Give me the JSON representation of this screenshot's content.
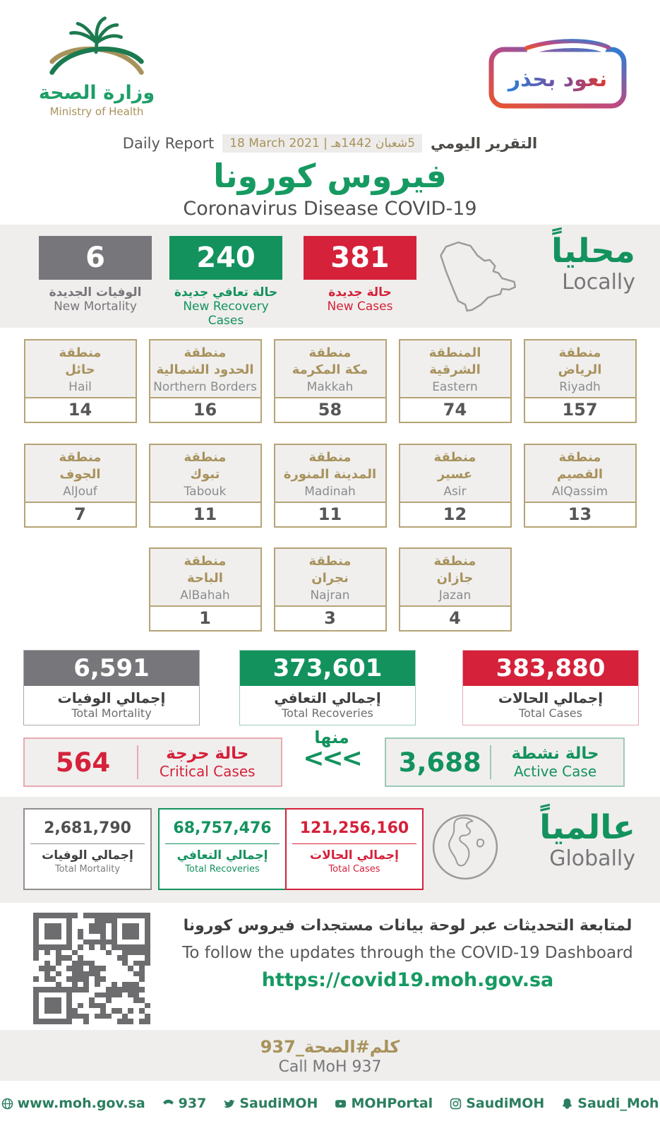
{
  "colors": {
    "green": "#13925e",
    "red": "#d5213a",
    "grey": "#77767a",
    "gold": "#a8925c",
    "band": "#efeeec"
  },
  "header": {
    "ministry_ar": "وزارة الصحة",
    "ministry_en": "Ministry of Health",
    "badge": "نعود بحذر",
    "report_en": "Daily Report",
    "report_ar": "التقرير اليومي",
    "date_hijri": "5شعبان 1442هـ",
    "date_sep": "|",
    "date_greg": "18 March 2021",
    "title_ar": "فيروس كورونا",
    "title_en": "Coronavirus Disease COVID-19"
  },
  "locally": {
    "label_ar": "محلياً",
    "label_en": "Locally",
    "new_mortality": {
      "value": "6",
      "ar": "الوفيات الجديدة",
      "en": "New Mortality"
    },
    "new_recovery": {
      "value": "240",
      "ar": "حالة تعافي جديدة",
      "en": "New Recovery Cases"
    },
    "new_cases": {
      "value": "381",
      "ar": "حالة جديدة",
      "en": "New Cases"
    }
  },
  "regions": [
    {
      "ar_top": "منطقة",
      "ar_name": "حائل",
      "en": "Hail",
      "value": "14"
    },
    {
      "ar_top": "منطقة",
      "ar_name": "الحدود الشمالية",
      "en": "Northern Borders",
      "value": "16"
    },
    {
      "ar_top": "منطقة",
      "ar_name": "مكة المكرمة",
      "en": "Makkah",
      "value": "58"
    },
    {
      "ar_top": "المنطقة",
      "ar_name": "الشرقية",
      "en": "Eastern",
      "value": "74"
    },
    {
      "ar_top": "منطقة",
      "ar_name": "الرياض",
      "en": "Riyadh",
      "value": "157"
    },
    {
      "ar_top": "منطقة",
      "ar_name": "الجوف",
      "en": "AlJouf",
      "value": "7"
    },
    {
      "ar_top": "منطقة",
      "ar_name": "تبوك",
      "en": "Tabouk",
      "value": "11"
    },
    {
      "ar_top": "منطقة",
      "ar_name": "المدينة المنورة",
      "en": "Madinah",
      "value": "11"
    },
    {
      "ar_top": "منطقة",
      "ar_name": "عسير",
      "en": "Asir",
      "value": "12"
    },
    {
      "ar_top": "منطقة",
      "ar_name": "القصيم",
      "en": "AlQassim",
      "value": "13"
    },
    {
      "ar_top": "منطقة",
      "ar_name": "الباحة",
      "en": "AlBahah",
      "value": "1"
    },
    {
      "ar_top": "منطقة",
      "ar_name": "نجران",
      "en": "Najran",
      "value": "3"
    },
    {
      "ar_top": "منطقة",
      "ar_name": "جازان",
      "en": "Jazan",
      "value": "4"
    }
  ],
  "totals": {
    "mortality": {
      "value": "6,591",
      "ar": "إجمالي الوفيات",
      "en": "Total Mortality"
    },
    "recoveries": {
      "value": "373,601",
      "ar": "إجمالي التعافي",
      "en": "Total Recoveries"
    },
    "cases": {
      "value": "383,880",
      "ar": "إجمالي الحالات",
      "en": "Total Cases"
    }
  },
  "critical": {
    "value": "564",
    "ar": "حالة حرجة",
    "en": "Critical Cases"
  },
  "of_which": {
    "ar": "منها",
    "chevrons": "<<<"
  },
  "active": {
    "value": "3,688",
    "ar": "حالة نشطة",
    "en": "Active Case"
  },
  "globally": {
    "label_ar": "عالمياً",
    "label_en": "Globally",
    "mortality": {
      "value": "2,681,790",
      "ar": "إجمالي الوفيات",
      "en": "Total Mortality"
    },
    "recoveries": {
      "value": "68,757,476",
      "ar": "إجمالي التعافي",
      "en": "Total Recoveries"
    },
    "cases": {
      "value": "121,256,160",
      "ar": "إجمالي الحالات",
      "en": "Total Cases"
    }
  },
  "dashboard": {
    "ar": "لمتابعة التحديثات عبر لوحة بيانات مستجدات فيروس كورونا",
    "en": "To follow the updates through the COVID-19 Dashboard",
    "url": "https://covid19.moh.gov.sa"
  },
  "call": {
    "ar": "كلم#الصحة_937",
    "en": "Call MoH 937"
  },
  "footer": {
    "items": [
      {
        "icon": "globe-icon",
        "text": "www.moh.gov.sa"
      },
      {
        "icon": "phone-icon",
        "text": "937"
      },
      {
        "icon": "twitter-icon",
        "text": "SaudiMOH"
      },
      {
        "icon": "youtube-icon",
        "text": "MOHPortal"
      },
      {
        "icon": "instagram-icon",
        "text": "SaudiMOH"
      },
      {
        "icon": "snapchat-icon",
        "text": "Saudi_Moh"
      }
    ]
  }
}
